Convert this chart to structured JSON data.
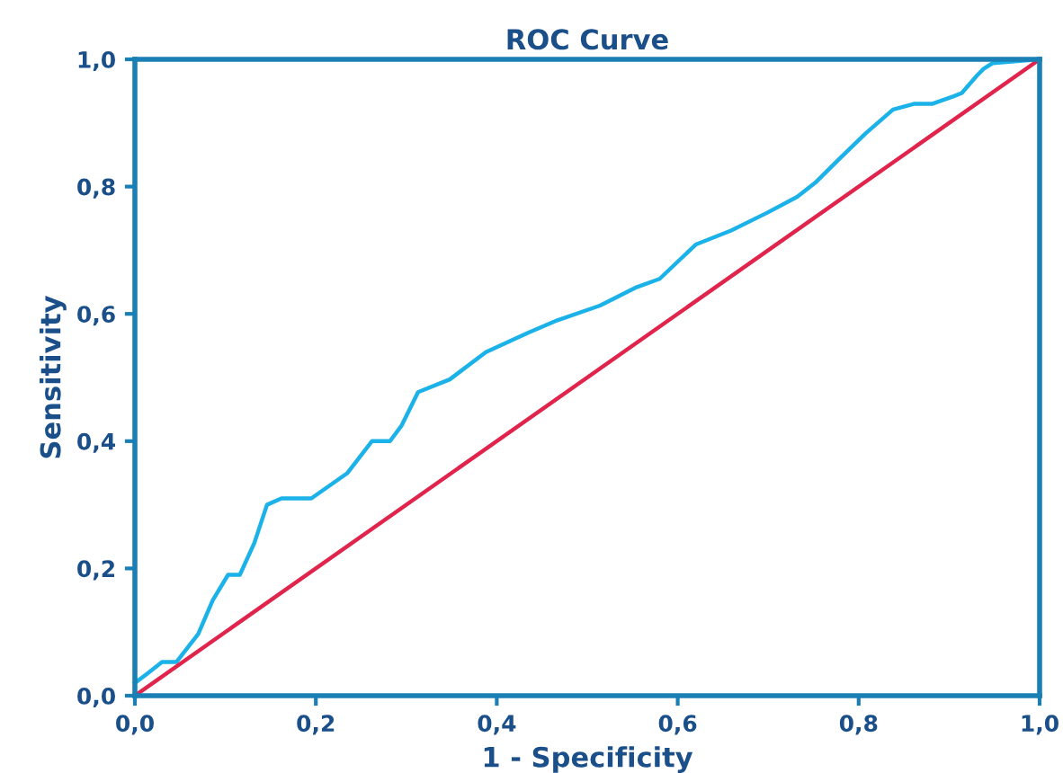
{
  "chart_data": {
    "type": "line",
    "title": "ROC Curve",
    "xlabel": "1 - Specificity",
    "ylabel": "Sensitivity",
    "series": [
      {
        "color": "#1ab2e8",
        "x": [
          0,
          0.013,
          0.03,
          0.046,
          0.07,
          0.086,
          0.103,
          0.116,
          0.132,
          0.146,
          0.162,
          0.195,
          0.235,
          0.262,
          0.282,
          0.295,
          0.313,
          0.348,
          0.388,
          0.434,
          0.467,
          0.514,
          0.553,
          0.58,
          0.62,
          0.659,
          0.699,
          0.732,
          0.752,
          0.779,
          0.808,
          0.838,
          0.861,
          0.881,
          0.905,
          0.914,
          0.931,
          0.938,
          0.948,
          1
        ],
        "values": [
          0.02,
          0.034,
          0.053,
          0.053,
          0.097,
          0.15,
          0.19,
          0.19,
          0.24,
          0.3,
          0.31,
          0.31,
          0.35,
          0.4,
          0.4,
          0.425,
          0.477,
          0.497,
          0.54,
          0.57,
          0.59,
          0.613,
          0.641,
          0.655,
          0.709,
          0.731,
          0.759,
          0.784,
          0.806,
          0.844,
          0.884,
          0.921,
          0.93,
          0.93,
          0.942,
          0.947,
          0.975,
          0.985,
          0.994,
          1
        ]
      },
      {
        "color": "#e0244c",
        "x": [
          0,
          1
        ],
        "values": [
          0,
          1
        ]
      }
    ],
    "xlim": [
      0,
      1
    ],
    "ylim": [
      0,
      1
    ],
    "xticks": [
      {
        "value": 0,
        "label": "0,0"
      },
      {
        "value": 0.2,
        "label": "0,2"
      },
      {
        "value": 0.4,
        "label": "0,4"
      },
      {
        "value": 0.6,
        "label": "0,6"
      },
      {
        "value": 0.8,
        "label": "0,8"
      },
      {
        "value": 1,
        "label": "1,0"
      }
    ],
    "yticks": [
      {
        "value": 0,
        "label": "0,0"
      },
      {
        "value": 0.2,
        "label": "0,2"
      },
      {
        "value": 0.4,
        "label": "0,4"
      },
      {
        "value": 0.6,
        "label": "0,6"
      },
      {
        "value": 0.8,
        "label": "0,8"
      },
      {
        "value": 1,
        "label": "1,0"
      }
    ],
    "grid": false,
    "marker": "none",
    "line_style": "solid"
  }
}
